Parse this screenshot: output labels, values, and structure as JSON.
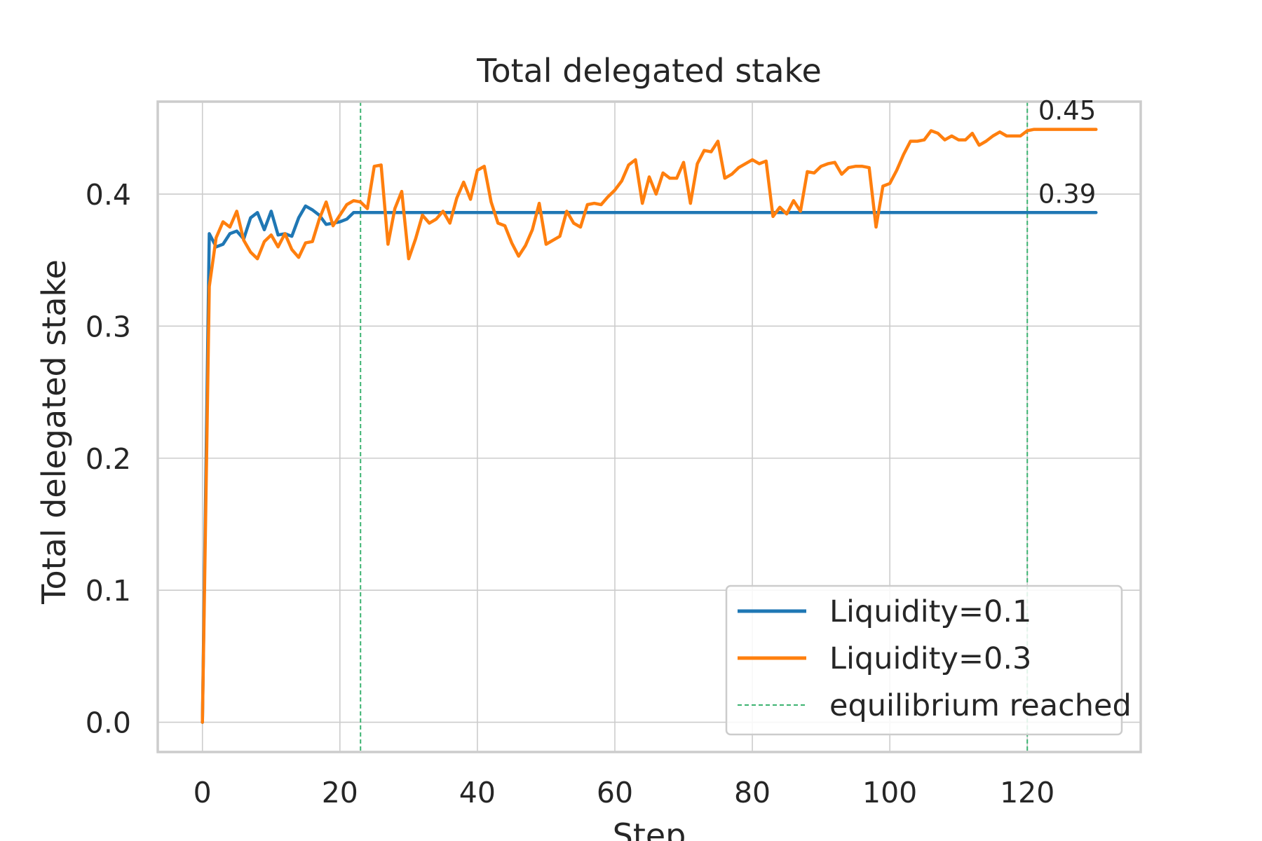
{
  "chart_data": {
    "type": "line",
    "title": "Total delegated stake",
    "xlabel": "Step",
    "ylabel": "Total delegated stake",
    "xlim": [
      -6.5,
      136.5
    ],
    "ylim": [
      -0.0225,
      0.47
    ],
    "xticks": [
      0,
      20,
      40,
      60,
      80,
      100,
      120
    ],
    "yticks": [
      0.0,
      0.1,
      0.2,
      0.3,
      0.4
    ],
    "xtick_labels": [
      "0",
      "20",
      "40",
      "60",
      "80",
      "100",
      "120"
    ],
    "ytick_labels": [
      "0.0",
      "0.1",
      "0.2",
      "0.3",
      "0.4"
    ],
    "grid": true,
    "legend_position": "bottom-right",
    "series": [
      {
        "name": "Liquidity=0.1",
        "color": "#1f77b4",
        "x": [
          0,
          1,
          2,
          3,
          4,
          5,
          6,
          7,
          8,
          9,
          10,
          11,
          12,
          13,
          14,
          15,
          16,
          17,
          18,
          19,
          20,
          21,
          22,
          23,
          24,
          25,
          26,
          27,
          28,
          29,
          30,
          31,
          32,
          33,
          34,
          35,
          36,
          37,
          38,
          39,
          40,
          41,
          42,
          43,
          44,
          45,
          46,
          47,
          48,
          49,
          50,
          51,
          52,
          53,
          54,
          55,
          56,
          57,
          58,
          59,
          60,
          61,
          62,
          63,
          64,
          65,
          66,
          67,
          68,
          69,
          70,
          71,
          72,
          73,
          74,
          75,
          76,
          77,
          78,
          79,
          80,
          81,
          82,
          83,
          84,
          85,
          86,
          87,
          88,
          89,
          90,
          91,
          92,
          93,
          94,
          95,
          96,
          97,
          98,
          99,
          100,
          101,
          102,
          103,
          104,
          105,
          106,
          107,
          108,
          109,
          110,
          111,
          112,
          113,
          114,
          115,
          116,
          117,
          118,
          119,
          120,
          121,
          122,
          123,
          124,
          125,
          126,
          127,
          128,
          129,
          130
        ],
        "y": [
          0.0,
          0.37,
          0.36,
          0.362,
          0.37,
          0.372,
          0.366,
          0.382,
          0.386,
          0.373,
          0.387,
          0.369,
          0.37,
          0.368,
          0.382,
          0.391,
          0.388,
          0.384,
          0.377,
          0.378,
          0.379,
          0.381,
          0.386,
          0.386,
          0.386,
          0.386,
          0.386,
          0.386,
          0.386,
          0.386,
          0.386,
          0.386,
          0.386,
          0.386,
          0.386,
          0.386,
          0.386,
          0.386,
          0.386,
          0.386,
          0.386,
          0.386,
          0.386,
          0.386,
          0.386,
          0.386,
          0.386,
          0.386,
          0.386,
          0.386,
          0.386,
          0.386,
          0.386,
          0.386,
          0.386,
          0.386,
          0.386,
          0.386,
          0.386,
          0.386,
          0.386,
          0.386,
          0.386,
          0.386,
          0.386,
          0.386,
          0.386,
          0.386,
          0.386,
          0.386,
          0.386,
          0.386,
          0.386,
          0.386,
          0.386,
          0.386,
          0.386,
          0.386,
          0.386,
          0.386,
          0.386,
          0.386,
          0.386,
          0.386,
          0.386,
          0.386,
          0.386,
          0.386,
          0.386,
          0.386,
          0.386,
          0.386,
          0.386,
          0.386,
          0.386,
          0.386,
          0.386,
          0.386,
          0.386,
          0.386,
          0.386,
          0.386,
          0.386,
          0.386,
          0.386,
          0.386,
          0.386,
          0.386,
          0.386,
          0.386,
          0.386,
          0.386,
          0.386,
          0.386,
          0.386,
          0.386,
          0.386,
          0.386,
          0.386,
          0.386,
          0.386,
          0.386,
          0.386,
          0.386,
          0.386,
          0.386,
          0.386,
          0.386,
          0.386,
          0.386,
          0.386
        ]
      },
      {
        "name": "Liquidity=0.3",
        "color": "#ff7f0e",
        "x": [
          0,
          1,
          2,
          3,
          4,
          5,
          6,
          7,
          8,
          9,
          10,
          11,
          12,
          13,
          14,
          15,
          16,
          17,
          18,
          19,
          20,
          21,
          22,
          23,
          24,
          25,
          26,
          27,
          28,
          29,
          30,
          31,
          32,
          33,
          34,
          35,
          36,
          37,
          38,
          39,
          40,
          41,
          42,
          43,
          44,
          45,
          46,
          47,
          48,
          49,
          50,
          51,
          52,
          53,
          54,
          55,
          56,
          57,
          58,
          59,
          60,
          61,
          62,
          63,
          64,
          65,
          66,
          67,
          68,
          69,
          70,
          71,
          72,
          73,
          74,
          75,
          76,
          77,
          78,
          79,
          80,
          81,
          82,
          83,
          84,
          85,
          86,
          87,
          88,
          89,
          90,
          91,
          92,
          93,
          94,
          95,
          96,
          97,
          98,
          99,
          100,
          101,
          102,
          103,
          104,
          105,
          106,
          107,
          108,
          109,
          110,
          111,
          112,
          113,
          114,
          115,
          116,
          117,
          118,
          119,
          120,
          121,
          122,
          123,
          124,
          125,
          126,
          127,
          128,
          129,
          130
        ],
        "y": [
          0.0,
          0.33,
          0.367,
          0.379,
          0.375,
          0.387,
          0.365,
          0.356,
          0.351,
          0.364,
          0.369,
          0.36,
          0.37,
          0.358,
          0.352,
          0.363,
          0.364,
          0.381,
          0.394,
          0.376,
          0.384,
          0.392,
          0.395,
          0.394,
          0.389,
          0.421,
          0.422,
          0.362,
          0.389,
          0.402,
          0.351,
          0.366,
          0.384,
          0.378,
          0.381,
          0.387,
          0.378,
          0.397,
          0.409,
          0.396,
          0.418,
          0.421,
          0.394,
          0.378,
          0.376,
          0.363,
          0.353,
          0.361,
          0.373,
          0.393,
          0.362,
          0.365,
          0.368,
          0.387,
          0.378,
          0.375,
          0.392,
          0.393,
          0.392,
          0.398,
          0.403,
          0.41,
          0.422,
          0.426,
          0.393,
          0.413,
          0.4,
          0.416,
          0.412,
          0.412,
          0.424,
          0.393,
          0.423,
          0.433,
          0.432,
          0.44,
          0.412,
          0.415,
          0.42,
          0.423,
          0.426,
          0.423,
          0.425,
          0.383,
          0.39,
          0.385,
          0.395,
          0.387,
          0.417,
          0.416,
          0.421,
          0.423,
          0.424,
          0.415,
          0.42,
          0.421,
          0.421,
          0.42,
          0.375,
          0.406,
          0.408,
          0.418,
          0.43,
          0.44,
          0.44,
          0.441,
          0.448,
          0.446,
          0.441,
          0.444,
          0.441,
          0.441,
          0.446,
          0.437,
          0.44,
          0.444,
          0.447,
          0.444,
          0.444,
          0.444,
          0.448,
          0.449,
          0.449,
          0.449,
          0.449,
          0.449,
          0.449,
          0.449,
          0.449,
          0.449,
          0.449
        ]
      }
    ],
    "vlines": {
      "label": "equilibrium reached",
      "color": "#3cb371",
      "x": [
        23,
        120
      ]
    },
    "end_labels": [
      "0.39",
      "0.45"
    ]
  }
}
